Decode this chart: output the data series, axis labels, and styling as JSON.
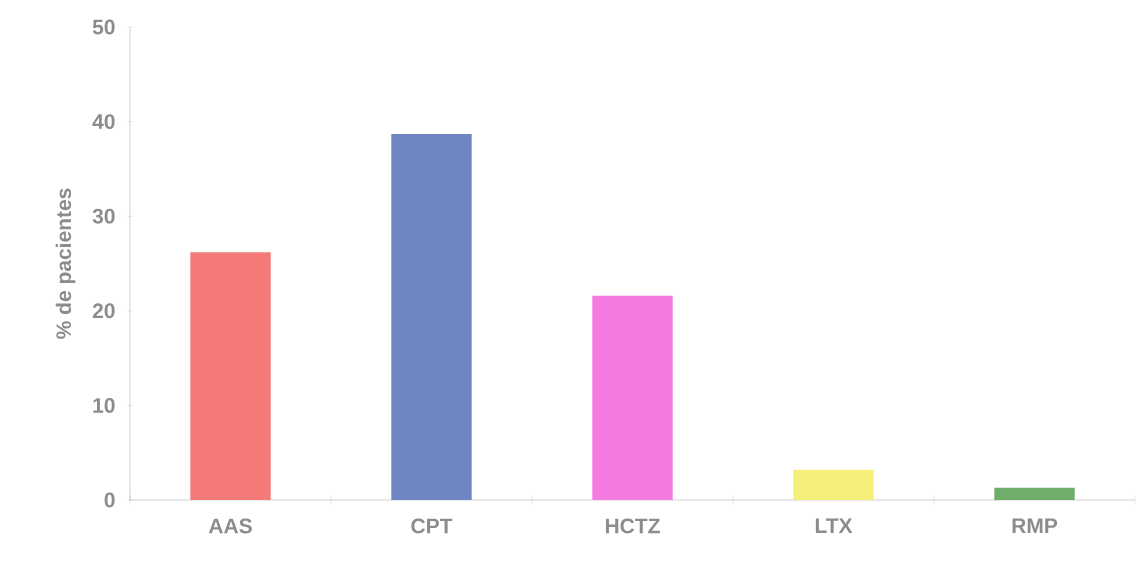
{
  "chart_data": {
    "type": "bar",
    "ylabel": "% de pacientes",
    "categories": [
      "AAS",
      "CPT",
      "HCTZ",
      "LTX",
      "RMP"
    ],
    "values": [
      26.2,
      38.7,
      21.6,
      3.2,
      1.3
    ],
    "colors": [
      "#f47a78",
      "#6f86c4",
      "#f47ae0",
      "#f5f07a",
      "#6fae6a"
    ],
    "ylim": [
      0,
      50
    ],
    "yticks": [
      0,
      10,
      20,
      30,
      40,
      50
    ]
  }
}
